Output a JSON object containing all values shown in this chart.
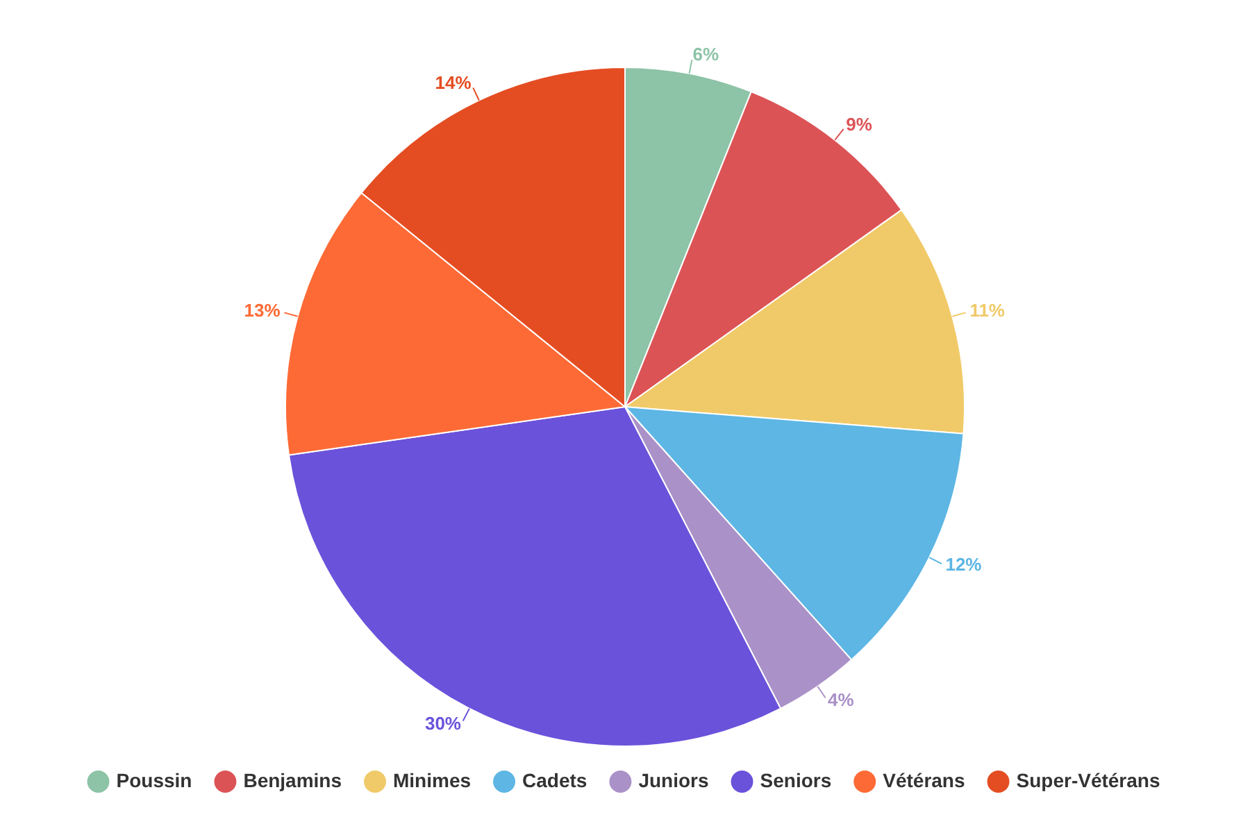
{
  "chart_data": {
    "type": "pie",
    "categories": [
      "Poussin",
      "Benjamins",
      "Minimes",
      "Cadets",
      "Juniors",
      "Seniors",
      "Vétérans",
      "Super-Vétérans"
    ],
    "values": [
      6,
      9,
      11,
      12,
      4,
      30,
      13,
      14
    ],
    "value_labels": [
      "6%",
      "9%",
      "11%",
      "12%",
      "4%",
      "30%",
      "13%",
      "14%"
    ],
    "colors": [
      "#8dc3a7",
      "#dc5356",
      "#f0ca68",
      "#5db6e4",
      "#aa91c8",
      "#6b52db",
      "#fe6a35",
      "#e44d22"
    ],
    "legend": "bottom"
  }
}
